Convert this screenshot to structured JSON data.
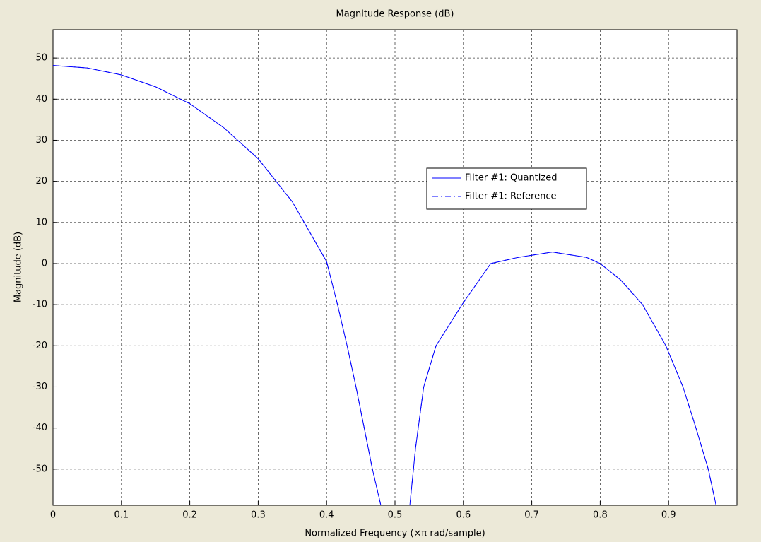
{
  "chart_data": {
    "type": "line",
    "title": "Magnitude Response (dB)",
    "x_label": "Normalized Frequency (×π rad/sample)",
    "y_label": "Magnitude (dB)",
    "x": [
      0,
      0.05,
      0.1,
      0.15,
      0.2,
      0.25,
      0.3,
      0.35,
      0.4,
      0.416,
      0.43,
      0.443,
      0.455,
      0.467,
      0.481,
      0.5,
      0.521,
      0.53,
      0.542,
      0.56,
      0.598,
      0.64,
      0.68,
      0.73,
      0.78,
      0.8,
      0.83,
      0.862,
      0.896,
      0.921,
      0.94,
      0.958,
      0.971
    ],
    "series": [
      {
        "name": "Filter #1: Quantized",
        "color": "#0000ff",
        "style": "solid",
        "values": [
          48.2,
          47.6,
          45.9,
          43,
          38.9,
          33,
          25.5,
          15,
          0.5,
          -10,
          -20,
          -30,
          -40,
          -50,
          -60,
          null,
          -60,
          -45,
          -30,
          -20,
          -10,
          0,
          1.5,
          2.8,
          1.5,
          0,
          -4,
          -10,
          -20,
          -30,
          -40,
          -50,
          -60
        ]
      },
      {
        "name": "Filter #1: Reference",
        "color": "#0000ff",
        "style": "dashdot",
        "values": [
          48.2,
          47.6,
          45.9,
          43,
          38.9,
          33,
          25.5,
          15,
          0.5,
          -10,
          -20,
          -30,
          -40,
          -50,
          -60,
          null,
          -60,
          -45,
          -30,
          -20,
          -10,
          0,
          1.5,
          2.8,
          1.5,
          0,
          -4,
          -10,
          -20,
          -30,
          -40,
          -50,
          -60
        ]
      }
    ],
    "xlim": [
      0,
      1
    ],
    "xticks": [
      0,
      0.1,
      0.2,
      0.3,
      0.4,
      0.5,
      0.6,
      0.7,
      0.8,
      0.9
    ],
    "ylim": [
      -58.8,
      56.9
    ],
    "yticks": [
      -50,
      -40,
      -30,
      -20,
      -10,
      0,
      10,
      20,
      30,
      40,
      50
    ],
    "grid": true,
    "legend_loc": "right"
  }
}
